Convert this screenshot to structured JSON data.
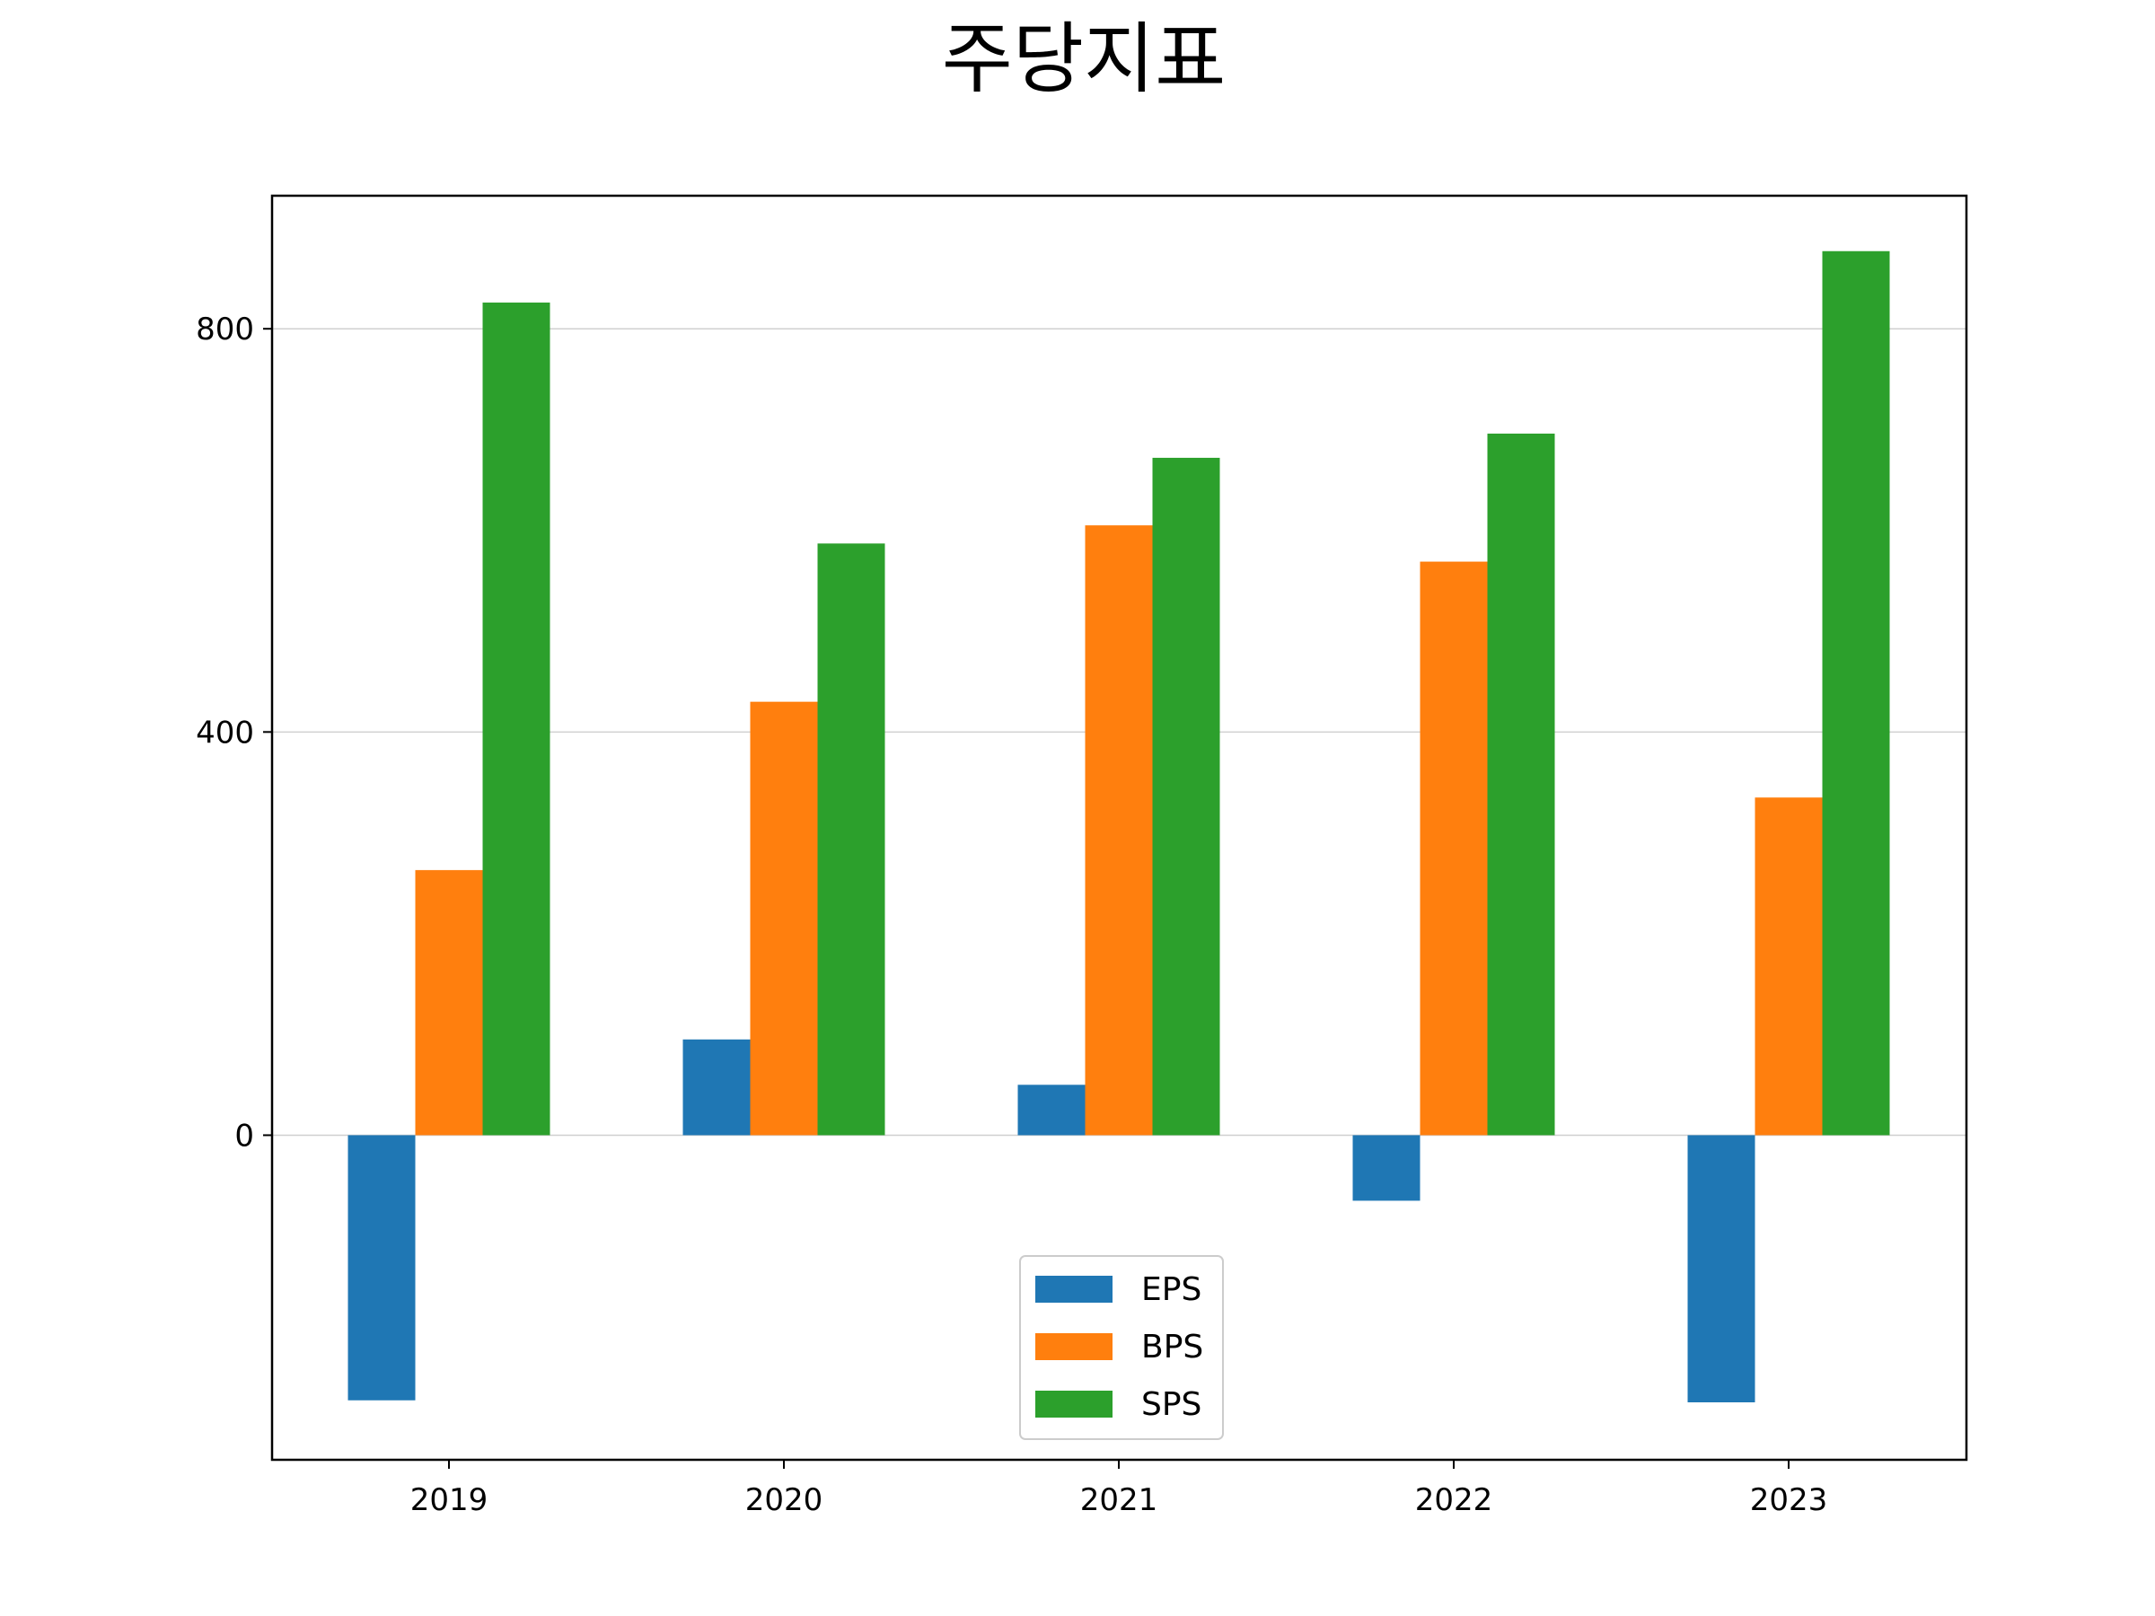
{
  "chart_data": {
    "type": "bar",
    "title": "주당지표",
    "xlabel": "",
    "ylabel": "",
    "categories": [
      "2019",
      "2020",
      "2021",
      "2022",
      "2023"
    ],
    "series": [
      {
        "name": "EPS",
        "color": "#1f77b4",
        "values": [
          -263,
          95,
          50,
          -65,
          -265
        ]
      },
      {
        "name": "BPS",
        "color": "#ff7f0e",
        "values": [
          263,
          430,
          605,
          569,
          335
        ]
      },
      {
        "name": "SPS",
        "color": "#2ca02c",
        "values": [
          826,
          587,
          672,
          696,
          877
        ]
      }
    ],
    "ylim": [
      -322,
      932
    ],
    "yticks": [
      0,
      400,
      800
    ],
    "grid": "y",
    "legend": "lower-center"
  }
}
